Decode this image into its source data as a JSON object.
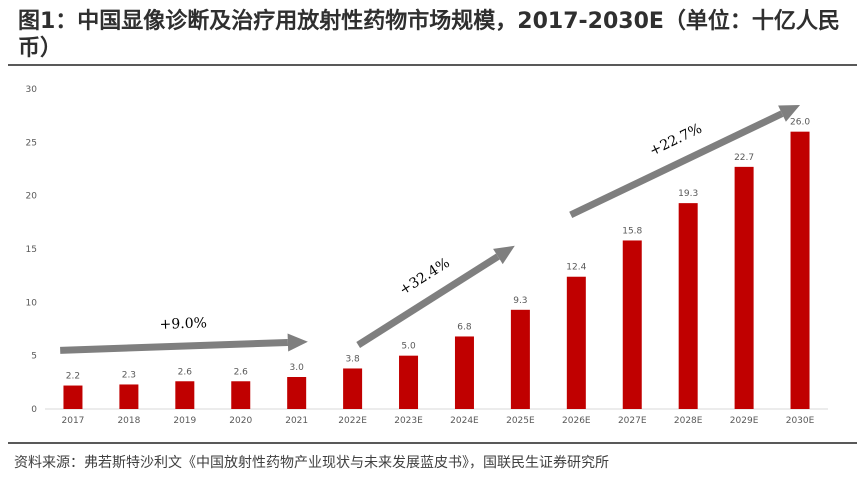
{
  "title": "图1：中国显像诊断及治疗用放射性药物市场规模，2017-2030E（单位：十亿人民币）",
  "source": "资料来源：弗若斯特沙利文《中国放射性药物产业现状与未来发展蓝皮书》，国联民生证券研究所",
  "colors": {
    "bar": "#c00000",
    "arrow": "#7f7f7f",
    "text": "#595959"
  },
  "chart_data": {
    "type": "bar",
    "categories": [
      "2017",
      "2018",
      "2019",
      "2020",
      "2021",
      "2022E",
      "2023E",
      "2024E",
      "2025E",
      "2026E",
      "2027E",
      "2028E",
      "2029E",
      "2030E"
    ],
    "values": [
      2.2,
      2.3,
      2.6,
      2.6,
      3.0,
      3.8,
      5.0,
      6.8,
      9.3,
      12.4,
      15.8,
      19.3,
      22.7,
      26.0
    ],
    "value_labels": [
      "2.2",
      "2.3",
      "2.6",
      "2.6",
      "3.0",
      "3.8",
      "5.0",
      "6.8",
      "9.3",
      "12.4",
      "15.8",
      "19.3",
      "22.7",
      "26.0"
    ],
    "ylim": [
      0,
      30
    ],
    "yticks": [
      "0",
      "5",
      "10",
      "15",
      "20",
      "25",
      "30"
    ],
    "grid": false,
    "annotations": [
      {
        "text": "+9.0%",
        "from_category": "2017",
        "to_category": "2021"
      },
      {
        "text": "+32.4%",
        "from_category": "2022E",
        "to_category": "2025E"
      },
      {
        "text": "+22.7%",
        "from_category": "2026E",
        "to_category": "2030E"
      }
    ]
  }
}
